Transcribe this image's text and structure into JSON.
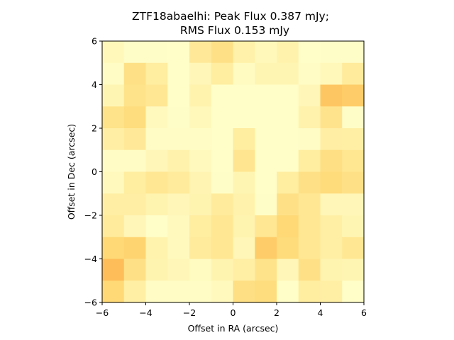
{
  "chart_data": {
    "type": "heatmap",
    "title_lines": [
      "ZTF18abaelhi: Peak Flux 0.387 mJy;",
      "RMS Flux 0.153 mJy"
    ],
    "xlabel": "Offset in RA (arcsec)",
    "ylabel": "Offset in Dec (arcsec)",
    "xlim": [
      -6,
      6
    ],
    "ylim": [
      -6,
      6
    ],
    "xticks": [
      -6,
      -4,
      -2,
      0,
      2,
      4,
      6
    ],
    "yticks": [
      -6,
      -4,
      -2,
      0,
      2,
      4,
      6
    ],
    "colormap": [
      "#ffffcc",
      "#ffeda0",
      "#fed976",
      "#feb24c",
      "#fd8d3c"
    ],
    "grid": false,
    "rows_top_to_bottom": [
      [
        0.1,
        0.03,
        0.03,
        0.02,
        0.3,
        0.4,
        0.2,
        0.1,
        0.18,
        0.02,
        0.03,
        0.03
      ],
      [
        0.04,
        0.4,
        0.25,
        0.02,
        0.12,
        0.25,
        0.06,
        0.14,
        0.14,
        0.04,
        0.1,
        0.28
      ],
      [
        0.14,
        0.38,
        0.32,
        0.02,
        0.17,
        0.02,
        0.02,
        0.02,
        0.02,
        0.12,
        0.62,
        0.58
      ],
      [
        0.38,
        0.45,
        0.08,
        0.03,
        0.1,
        0.02,
        0.02,
        0.02,
        0.02,
        0.18,
        0.37,
        0.03
      ],
      [
        0.23,
        0.3,
        0.04,
        0.04,
        0.04,
        0.02,
        0.25,
        0.02,
        0.02,
        0.04,
        0.23,
        0.22
      ],
      [
        0.04,
        0.04,
        0.12,
        0.18,
        0.08,
        0.02,
        0.35,
        0.02,
        0.02,
        0.25,
        0.42,
        0.34
      ],
      [
        0.08,
        0.25,
        0.33,
        0.28,
        0.15,
        0.03,
        0.14,
        0.02,
        0.25,
        0.4,
        0.47,
        0.4
      ],
      [
        0.23,
        0.23,
        0.16,
        0.12,
        0.16,
        0.28,
        0.18,
        0.03,
        0.4,
        0.32,
        0.12,
        0.12
      ],
      [
        0.28,
        0.12,
        0.02,
        0.08,
        0.25,
        0.33,
        0.16,
        0.33,
        0.5,
        0.33,
        0.22,
        0.14
      ],
      [
        0.5,
        0.53,
        0.17,
        0.08,
        0.28,
        0.33,
        0.12,
        0.58,
        0.47,
        0.33,
        0.22,
        0.33
      ],
      [
        0.68,
        0.4,
        0.16,
        0.12,
        0.06,
        0.16,
        0.22,
        0.38,
        0.12,
        0.4,
        0.16,
        0.14
      ],
      [
        0.5,
        0.22,
        0.04,
        0.04,
        0.04,
        0.08,
        0.42,
        0.45,
        0.02,
        0.25,
        0.22,
        0.02
      ]
    ]
  }
}
